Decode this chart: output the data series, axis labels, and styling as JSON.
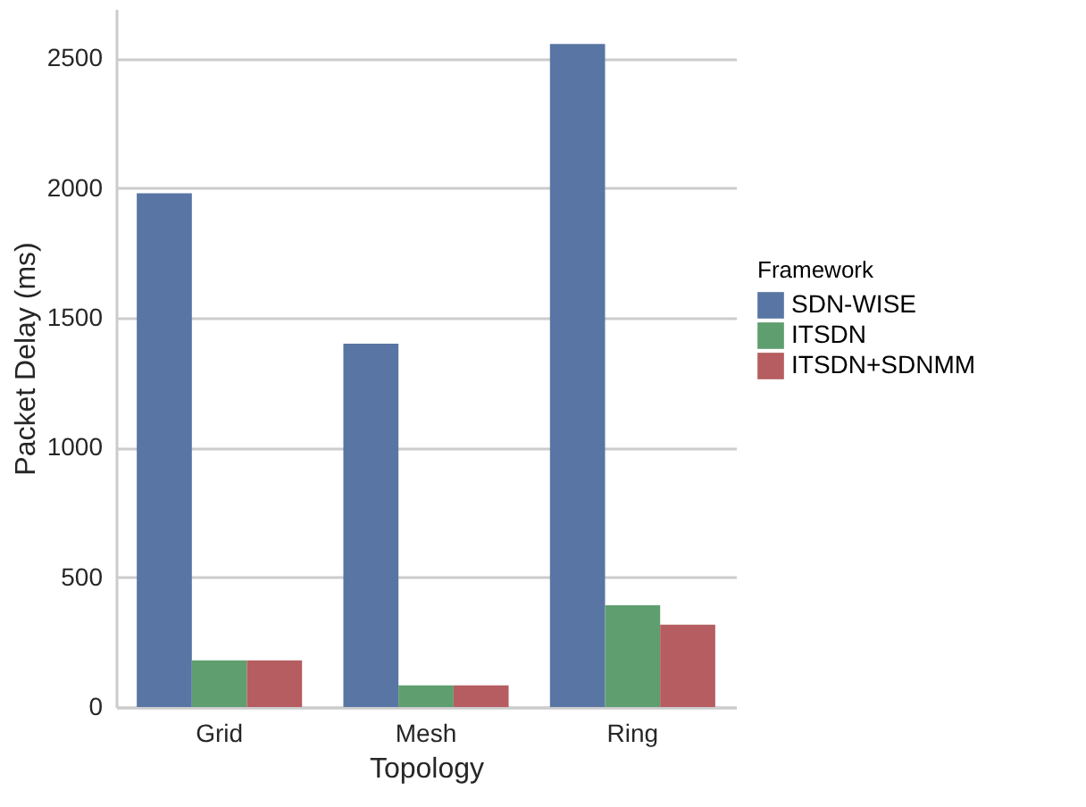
{
  "chart_data": {
    "type": "bar",
    "xlabel": "Topology",
    "ylabel": "Packet Delay (ms)",
    "legend_title": "Framework",
    "categories": [
      "Grid",
      "Mesh",
      "Ring"
    ],
    "series": [
      {
        "name": "SDN-WISE",
        "color": "#5975a4",
        "values": [
          1980,
          1400,
          2555
        ]
      },
      {
        "name": "ITSDN",
        "color": "#5f9e6e",
        "values": [
          180,
          83,
          392
        ]
      },
      {
        "name": "ITSDN+SDNMM",
        "color": "#b55d60",
        "values": [
          180,
          83,
          317
        ]
      }
    ],
    "ylim": [
      0,
      2690
    ],
    "yticks": [
      0,
      500,
      1000,
      1500,
      2000,
      2500
    ],
    "grid": "y",
    "legend": "right"
  }
}
